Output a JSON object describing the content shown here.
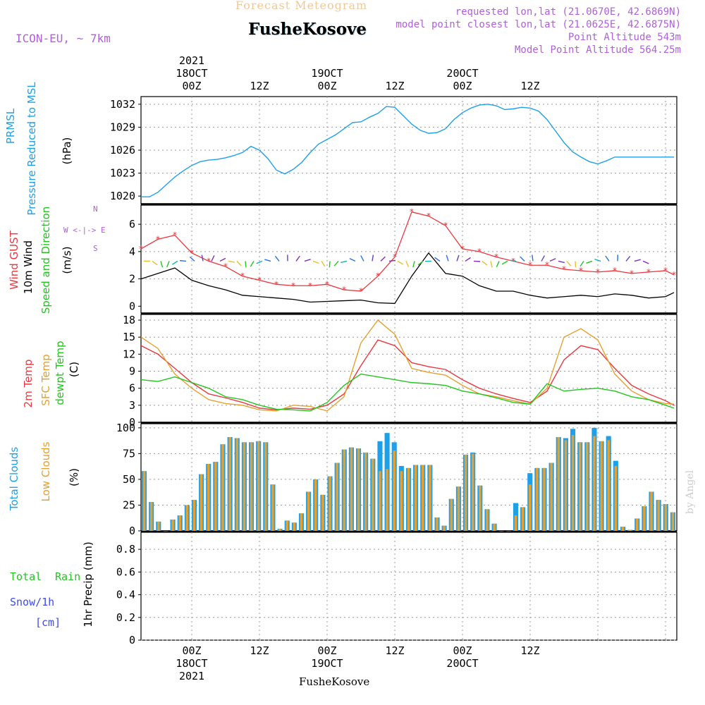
{
  "header": {
    "forecast_title": "Forecast Meteogram",
    "location": "FusheKosove",
    "model": "ICON-EU, ~ 7km",
    "requested": "requested lon,lat (21.0670E, 42.6869N)",
    "closest": "model point closest lon,lat (21.0625E, 42.6875N)",
    "point_altitude": "Point Altitude 543m",
    "model_altitude": "Model Point Altitude 564.25m",
    "watermark": "by Angel",
    "footer_location": "FusheKosove"
  },
  "time_axis": {
    "year": "2021",
    "top_ticks": [
      "00Z",
      "12Z",
      "00Z",
      "12Z",
      "00Z",
      "12Z"
    ],
    "date_labels": [
      "18OCT",
      "19OCT",
      "20OCT"
    ]
  },
  "panels": {
    "pressure": {
      "label1": "PRMSL",
      "label2": "Pressure Reduced to MSL",
      "unit": "(hPa)",
      "color1": "#1ea0e8",
      "color2": "#1ea0e8"
    },
    "wind": {
      "label1": "Wind GUST",
      "label2": "10m Wind",
      "label3": "Speed and Direction",
      "unit": "(m/s)",
      "compass_w": "W",
      "compass_e": "E",
      "compass_n": "N",
      "compass_s": "S"
    },
    "temp": {
      "label1": "2m Temp",
      "label2": "SFC Temp",
      "label3": "dewpt Temp",
      "unit": "(C)"
    },
    "clouds": {
      "label1": "Total Clouds",
      "label2": "Low Clouds",
      "unit": "(%)"
    },
    "precip": {
      "label1": "Total",
      "label2": "Rain",
      "label3": "Snow/1h",
      "label4": "[cm]",
      "unit": "1hr Precip (mm)"
    }
  },
  "chart_data": [
    {
      "type": "line",
      "name": "pressure",
      "ylim": [
        1019,
        1033
      ],
      "yticks": [
        1020,
        1023,
        1026,
        1029,
        1032
      ],
      "x_hours": [
        0,
        3,
        6,
        9,
        12,
        15,
        18,
        21,
        24,
        27,
        30,
        33,
        36,
        39,
        42,
        45,
        48,
        51,
        54,
        57,
        60,
        63,
        66,
        69,
        72,
        75,
        78,
        81,
        84,
        87,
        90,
        93,
        96,
        99,
        102,
        105,
        108,
        111,
        114,
        117,
        120,
        123,
        126,
        129,
        132,
        135,
        138,
        141,
        144,
        147,
        150,
        153,
        156,
        159,
        162,
        165,
        168,
        171,
        174,
        177,
        180,
        183,
        186,
        189
      ],
      "series": [
        {
          "values": [
            1019.9,
            1019.9,
            1020.5,
            1021.5,
            1022.5,
            1023.3,
            1024.0,
            1024.5,
            1024.7,
            1024.8,
            1025.0,
            1025.3,
            1025.7,
            1026.5,
            1026.0,
            1024.9,
            1023.4,
            1022.9,
            1023.5,
            1024.4,
            1025.7,
            1026.8,
            1027.4,
            1028.0,
            1028.8,
            1029.6,
            1029.7,
            1030.3,
            1030.8,
            1031.7,
            1031.6,
            1030.5,
            1029.4,
            1028.6,
            1028.2,
            1028.3,
            1028.8,
            1030.0,
            1030.9,
            1031.5,
            1031.9,
            1032.0,
            1031.8,
            1031.3,
            1031.4,
            1031.6,
            1031.5,
            1031.1,
            1030.0,
            1028.5,
            1027.0,
            1025.8,
            1025.1,
            1024.5,
            1024.2,
            1024.6,
            1025.1,
            1025.1,
            1025.1,
            1025.1,
            1025.1,
            1025.1,
            1025.1,
            1025.1
          ],
          "color": "#1ea0e8"
        }
      ]
    },
    {
      "type": "line",
      "name": "wind",
      "ylim": [
        -0.5,
        7.4
      ],
      "yticks": [
        0,
        2,
        4,
        6
      ],
      "series": [
        {
          "name": "gust",
          "color": "#e8383f",
          "x": [
            0,
            6,
            12,
            18,
            24,
            30,
            36,
            42,
            48,
            54,
            60,
            66,
            72,
            78,
            84,
            90,
            96,
            102,
            108,
            114,
            120,
            126,
            132,
            138,
            144,
            150,
            156,
            162,
            168,
            174,
            180,
            186,
            189
          ],
          "values": [
            4.2,
            4.9,
            5.2,
            3.9,
            3.3,
            2.9,
            2.2,
            1.9,
            1.6,
            1.5,
            1.5,
            1.6,
            1.2,
            1.1,
            2.2,
            3.6,
            6.9,
            6.6,
            5.9,
            4.2,
            4.0,
            3.6,
            3.3,
            3.0,
            3.0,
            2.7,
            2.6,
            2.5,
            2.6,
            2.4,
            2.5,
            2.6,
            2.3
          ]
        },
        {
          "name": "wind10m",
          "color": "#000000",
          "x": [
            0,
            6,
            12,
            18,
            24,
            30,
            36,
            42,
            48,
            54,
            60,
            66,
            72,
            78,
            84,
            90,
            96,
            102,
            108,
            114,
            120,
            126,
            132,
            138,
            144,
            150,
            156,
            162,
            168,
            174,
            180,
            186,
            189
          ],
          "values": [
            2.0,
            2.4,
            2.8,
            1.9,
            1.5,
            1.2,
            0.8,
            0.7,
            0.6,
            0.5,
            0.3,
            0.35,
            0.4,
            0.45,
            0.25,
            0.2,
            2.2,
            3.9,
            2.4,
            2.2,
            1.5,
            1.1,
            1.1,
            0.8,
            0.6,
            0.7,
            0.8,
            0.7,
            0.9,
            0.8,
            0.6,
            0.7,
            1.0
          ]
        }
      ]
    },
    {
      "type": "line",
      "name": "temperature",
      "ylim": [
        0,
        19
      ],
      "yticks": [
        0,
        3,
        6,
        9,
        12,
        15,
        18
      ],
      "series": [
        {
          "name": "2m",
          "color": "#e8383f",
          "x": [
            0,
            6,
            12,
            18,
            24,
            30,
            36,
            42,
            48,
            54,
            60,
            66,
            72,
            78,
            84,
            90,
            96,
            102,
            108,
            114,
            120,
            126,
            132,
            138,
            144,
            150,
            156,
            162,
            168,
            174,
            180,
            186,
            189
          ],
          "values": [
            13.5,
            12.0,
            9.5,
            7.0,
            5.0,
            4.3,
            3.5,
            2.5,
            2.2,
            2.5,
            2.3,
            3.0,
            5.0,
            10.0,
            14.5,
            13.5,
            10.5,
            9.8,
            9.3,
            7.5,
            6.0,
            5.0,
            4.2,
            3.5,
            5.5,
            11.0,
            13.5,
            12.8,
            9.5,
            6.5,
            5.0,
            3.8,
            3.0
          ]
        },
        {
          "name": "sfc",
          "color": "#e6a030",
          "x": [
            0,
            6,
            12,
            18,
            24,
            30,
            36,
            42,
            48,
            54,
            60,
            66,
            72,
            78,
            84,
            90,
            96,
            102,
            108,
            114,
            120,
            126,
            132,
            138,
            144,
            150,
            156,
            162,
            168,
            174,
            180,
            186,
            189
          ],
          "values": [
            15.0,
            13.0,
            8.5,
            6.0,
            4.0,
            3.3,
            3.0,
            2.2,
            2.0,
            3.0,
            2.8,
            2.0,
            4.5,
            14.0,
            18.0,
            15.5,
            9.5,
            8.8,
            8.3,
            6.5,
            5.0,
            4.5,
            3.8,
            3.2,
            6.0,
            15.0,
            16.5,
            14.5,
            8.5,
            5.5,
            4.0,
            3.3,
            3.2
          ]
        },
        {
          "name": "dewpt",
          "color": "#22c51e",
          "x": [
            0,
            6,
            12,
            18,
            24,
            30,
            36,
            42,
            48,
            54,
            60,
            66,
            72,
            78,
            84,
            90,
            96,
            102,
            108,
            114,
            120,
            126,
            132,
            138,
            144,
            150,
            156,
            162,
            168,
            174,
            180,
            186,
            189
          ],
          "values": [
            7.5,
            7.2,
            8.0,
            7.0,
            6.0,
            4.5,
            4.0,
            3.0,
            2.3,
            2.2,
            2.0,
            3.5,
            6.5,
            8.5,
            8.0,
            7.5,
            7.0,
            6.8,
            6.5,
            5.5,
            5.0,
            4.3,
            3.5,
            3.2,
            6.8,
            5.5,
            5.8,
            6.0,
            5.5,
            4.5,
            4.0,
            3.0,
            2.5
          ]
        }
      ]
    },
    {
      "type": "bar",
      "name": "clouds",
      "ylim": [
        0,
        104
      ],
      "yticks": [
        0,
        25,
        50,
        75,
        100
      ],
      "series": [
        {
          "name": "total",
          "color": "#1ea0e8",
          "values": [
            58,
            28,
            9,
            0,
            11,
            15,
            25,
            30,
            55,
            65,
            67,
            84,
            91,
            90,
            86,
            86,
            87,
            86,
            45,
            2,
            10,
            8,
            17,
            38,
            50,
            35,
            53,
            66,
            79,
            81,
            80,
            76,
            70,
            87,
            95,
            86,
            63,
            61,
            64,
            64,
            64,
            13,
            5,
            31,
            43,
            74,
            76,
            44,
            21,
            7,
            0,
            0,
            27,
            23,
            56,
            61,
            61,
            66,
            91,
            90,
            99,
            86,
            86,
            100,
            87,
            92,
            68,
            4,
            1,
            12,
            24,
            38,
            30,
            26,
            18
          ]
        },
        {
          "name": "low",
          "color": "#e6a030",
          "values": [
            58,
            28,
            9,
            0,
            11,
            15,
            25,
            30,
            55,
            65,
            67,
            84,
            91,
            90,
            86,
            86,
            87,
            86,
            45,
            2,
            10,
            8,
            17,
            38,
            50,
            35,
            53,
            66,
            79,
            81,
            80,
            76,
            70,
            58,
            60,
            78,
            58,
            61,
            64,
            64,
            64,
            13,
            5,
            31,
            43,
            74,
            75,
            44,
            21,
            7,
            0,
            0,
            15,
            23,
            45,
            61,
            61,
            66,
            91,
            88,
            93,
            86,
            86,
            92,
            87,
            88,
            63,
            4,
            1,
            12,
            24,
            38,
            30,
            26,
            18
          ]
        }
      ]
    },
    {
      "type": "line",
      "name": "precip",
      "ylim": [
        0,
        0.95
      ],
      "yticks": [
        0,
        0.2,
        0.4,
        0.6,
        0.8
      ],
      "series": [
        {
          "name": "rain",
          "values": []
        }
      ]
    }
  ]
}
